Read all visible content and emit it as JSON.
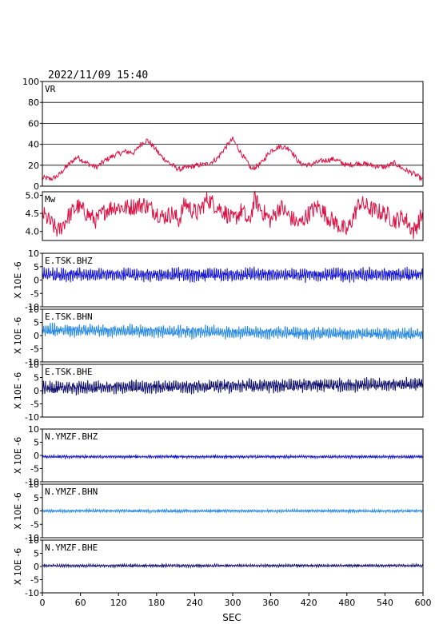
{
  "header": {
    "datetime": "2022/11/09  15:40"
  },
  "colors": {
    "red": "#dd1144",
    "blue": "#1a1ad6",
    "lightblue": "#2a8be6",
    "navy": "#141470"
  },
  "x_axis": {
    "label": "SEC",
    "range": [
      0,
      600
    ],
    "ticks": [
      0,
      60,
      120,
      180,
      240,
      300,
      360,
      420,
      480,
      540,
      600
    ]
  },
  "chart_data": [
    {
      "type": "line",
      "panel_label": "VR",
      "color_key": "red",
      "ylim": [
        0,
        100
      ],
      "yticks": [
        0,
        20,
        40,
        60,
        80,
        100
      ],
      "grid": true,
      "x": [
        0,
        15,
        25,
        40,
        55,
        70,
        85,
        100,
        115,
        130,
        145,
        155,
        165,
        175,
        185,
        200,
        215,
        230,
        245,
        260,
        275,
        290,
        300,
        315,
        330,
        345,
        360,
        375,
        390,
        405,
        420,
        440,
        460,
        480,
        500,
        520,
        540,
        555,
        570,
        585,
        600
      ],
      "y": [
        8,
        7,
        10,
        20,
        28,
        22,
        18,
        25,
        30,
        33,
        32,
        40,
        44,
        38,
        30,
        22,
        16,
        18,
        20,
        21,
        26,
        38,
        45,
        30,
        16,
        22,
        34,
        38,
        36,
        22,
        20,
        24,
        26,
        20,
        22,
        20,
        18,
        22,
        16,
        12,
        6
      ],
      "noise": 2.5
    },
    {
      "type": "line",
      "panel_label": "Mw",
      "color_key": "red",
      "ylim": [
        3.75,
        5.1
      ],
      "yticks": [
        4.0,
        4.5,
        5.0
      ],
      "x": [
        0,
        15,
        25,
        40,
        55,
        70,
        85,
        100,
        115,
        130,
        145,
        160,
        175,
        190,
        205,
        215,
        225,
        235,
        245,
        260,
        275,
        290,
        300,
        315,
        325,
        335,
        345,
        360,
        375,
        390,
        405,
        420,
        435,
        450,
        465,
        480,
        500,
        520,
        540,
        555,
        570,
        585,
        600
      ],
      "y": [
        4.5,
        4.2,
        4.0,
        4.4,
        4.7,
        4.5,
        4.3,
        4.6,
        4.7,
        4.65,
        4.7,
        4.75,
        4.6,
        4.4,
        4.5,
        4.3,
        4.8,
        4.6,
        4.5,
        4.9,
        4.7,
        4.5,
        4.3,
        4.6,
        4.2,
        4.9,
        4.6,
        4.3,
        4.7,
        4.4,
        4.2,
        4.5,
        4.7,
        4.4,
        4.2,
        4.0,
        4.8,
        4.6,
        4.5,
        4.3,
        4.4,
        4.0,
        4.5
      ],
      "noise": 0.25
    },
    {
      "type": "line",
      "panel_label": "E.TSK.BHZ",
      "color_key": "blue",
      "ylim": [
        -10,
        10
      ],
      "yticks": [
        -10,
        -5,
        0,
        5,
        10
      ],
      "ylabel": "X 10E -6",
      "center": 2.0,
      "drift": 0.0,
      "amp": 1.4
    },
    {
      "type": "line",
      "panel_label": "E.TSK.BHN",
      "color_key": "lightblue",
      "ylim": [
        -10,
        10
      ],
      "yticks": [
        -10,
        -5,
        0,
        5,
        10
      ],
      "ylabel": "X 10E -6",
      "center": 2.0,
      "drift": -1.5,
      "amp": 1.3
    },
    {
      "type": "line",
      "panel_label": "E.TSK.BHE",
      "color_key": "navy",
      "ylim": [
        -10,
        10
      ],
      "yticks": [
        -10,
        -5,
        0,
        5,
        10
      ],
      "ylabel": "X 10E -6",
      "center": 1.0,
      "drift": 1.5,
      "amp": 1.4
    },
    {
      "type": "line",
      "panel_label": "N.YMZF.BHZ",
      "color_key": "blue",
      "ylim": [
        -10,
        10
      ],
      "yticks": [
        -10,
        -5,
        0,
        5,
        10
      ],
      "ylabel": "X 10E -6",
      "center": -0.5,
      "drift": 0.0,
      "amp": 0.3
    },
    {
      "type": "line",
      "panel_label": "N.YMZF.BHN",
      "color_key": "lightblue",
      "ylim": [
        -10,
        10
      ],
      "yticks": [
        -10,
        -5,
        0,
        5,
        10
      ],
      "ylabel": "X 10E -6",
      "center": 0.0,
      "drift": 0.0,
      "amp": 0.3
    },
    {
      "type": "line",
      "panel_label": "N.YMZF.BHE",
      "color_key": "navy",
      "ylim": [
        -10,
        10
      ],
      "yticks": [
        -10,
        -5,
        0,
        5,
        10
      ],
      "ylabel": "X 10E -6",
      "center": 0.3,
      "drift": 0.0,
      "amp": 0.3
    }
  ]
}
